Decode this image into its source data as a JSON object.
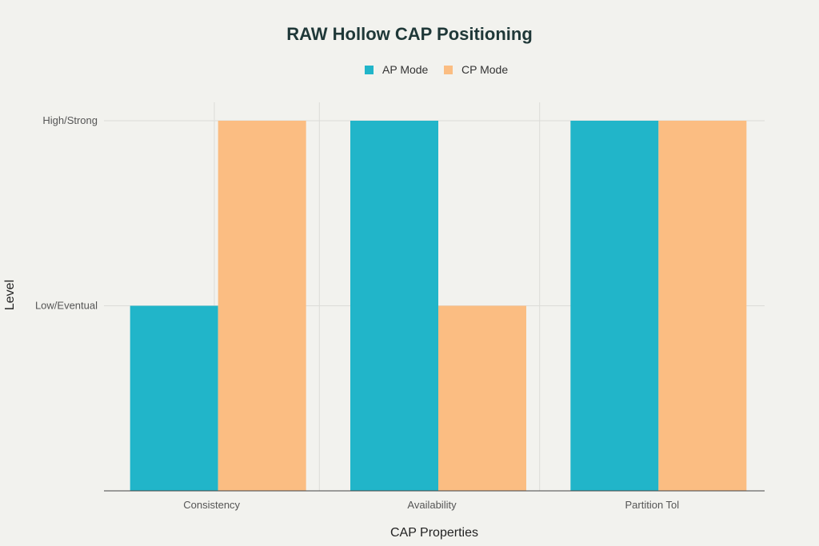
{
  "chart_data": {
    "type": "bar",
    "title": "RAW Hollow CAP Positioning",
    "xlabel": "CAP Properties",
    "ylabel": "Level",
    "categories": [
      "Consistency",
      "Availability",
      "Partition Tol"
    ],
    "y_tick_values": [
      1,
      2
    ],
    "y_tick_labels": [
      "Low/Eventual",
      "High/Strong"
    ],
    "ylim": [
      0,
      2
    ],
    "series": [
      {
        "name": "AP Mode",
        "values": [
          1,
          2,
          2
        ],
        "color": "#21b5c9"
      },
      {
        "name": "CP Mode",
        "values": [
          2,
          1,
          2
        ],
        "color": "#fbbd82"
      }
    ],
    "legend_position": "top-center",
    "grid": true
  }
}
